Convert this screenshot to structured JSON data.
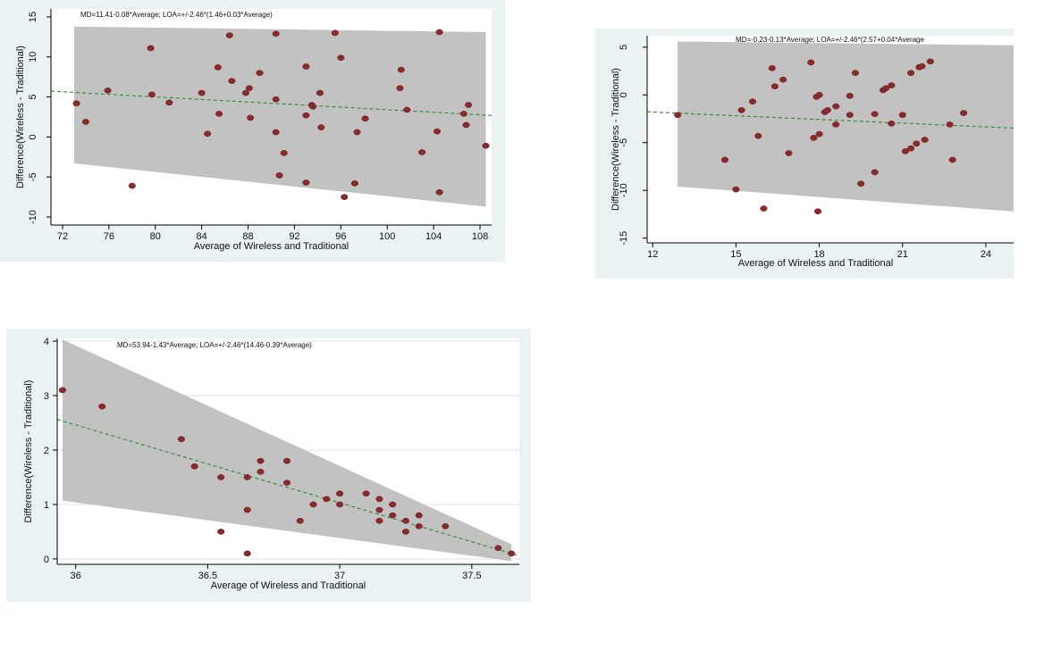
{
  "chart_data": [
    {
      "type": "scatter",
      "annotation": "MD=11.41-0.08*Average; LOA=+/-2.46*(1.46+0.03*Average)",
      "xlabel": "Average of Wireless and Traditional",
      "ylabel": "Difference(Wireless - Traditional)",
      "xlim": [
        71,
        109
      ],
      "ylim": [
        -11,
        16
      ],
      "xticks": [
        "72",
        "76",
        "80",
        "84",
        "88",
        "92",
        "96",
        "100",
        "104",
        "108"
      ],
      "yticks": [
        "-10",
        "-5",
        "0",
        "5",
        "10",
        "15"
      ],
      "yticks_rotated": true,
      "grid": false,
      "md_line": {
        "intercept": 11.41,
        "slope": -0.08
      },
      "loa_band": {
        "x": [
          73,
          108.5
        ],
        "upper": [
          13.8,
          13.1
        ],
        "lower": [
          -3.3,
          -8.7
        ]
      },
      "points": [
        [
          73.2,
          4.2
        ],
        [
          74,
          1.9
        ],
        [
          75.9,
          5.8
        ],
        [
          78,
          -6.1
        ],
        [
          79.6,
          11.1
        ],
        [
          79.7,
          5.3
        ],
        [
          81.2,
          4.3
        ],
        [
          84,
          5.5
        ],
        [
          84.5,
          0.4
        ],
        [
          85.4,
          8.7
        ],
        [
          85.5,
          2.9
        ],
        [
          86.4,
          12.7
        ],
        [
          86.6,
          7
        ],
        [
          87.8,
          5.5
        ],
        [
          88.1,
          6.1
        ],
        [
          88.2,
          2.4
        ],
        [
          89,
          8
        ],
        [
          90.4,
          12.9
        ],
        [
          90.4,
          4.7
        ],
        [
          90.4,
          0.6
        ],
        [
          90.7,
          -4.8
        ],
        [
          91.1,
          -2
        ],
        [
          93,
          8.8
        ],
        [
          93,
          2.7
        ],
        [
          93,
          -5.7
        ],
        [
          93.5,
          4
        ],
        [
          93.6,
          3.8
        ],
        [
          94.2,
          5.5
        ],
        [
          94.3,
          1.2
        ],
        [
          95.5,
          13
        ],
        [
          96,
          9.9
        ],
        [
          96.3,
          -7.5
        ],
        [
          97.2,
          -5.8
        ],
        [
          97.4,
          0.6
        ],
        [
          98.1,
          2.3
        ],
        [
          101.1,
          6.1
        ],
        [
          101.2,
          8.4
        ],
        [
          101.7,
          3.4
        ],
        [
          103,
          -1.9
        ],
        [
          104.3,
          0.7
        ],
        [
          104.5,
          13.1
        ],
        [
          104.5,
          -6.9
        ],
        [
          106.6,
          2.9
        ],
        [
          106.8,
          1.5
        ],
        [
          107,
          4
        ],
        [
          108.5,
          -1.1
        ]
      ]
    },
    {
      "type": "scatter",
      "annotation": "MD=-0.23-0.13*Average; LOA=+/-2.46*(2.57+0.04*Average",
      "xlabel": "Average of Wireless and Traditional",
      "ylabel": "Difference(Wireless - Traditional)",
      "xlim": [
        11.8,
        25
      ],
      "ylim": [
        -15.5,
        6.2
      ],
      "xticks": [
        "12",
        "15",
        "18",
        "21",
        "24"
      ],
      "yticks": [
        "-15",
        "-10",
        "-5",
        "0",
        "5"
      ],
      "yticks_rotated": true,
      "grid": false,
      "md_line": {
        "intercept": -0.23,
        "slope": -0.13
      },
      "loa_band": {
        "x": [
          12.9,
          25
        ],
        "upper": [
          5.6,
          5.2
        ],
        "lower": [
          -9.6,
          -12.2
        ]
      },
      "points": [
        [
          12.9,
          -2.1
        ],
        [
          14.6,
          -6.8
        ],
        [
          15,
          -9.9
        ],
        [
          15.2,
          -1.6
        ],
        [
          15.6,
          -0.7
        ],
        [
          15.8,
          -4.3
        ],
        [
          16,
          -11.9
        ],
        [
          16.3,
          2.8
        ],
        [
          16.4,
          0.9
        ],
        [
          16.7,
          1.6
        ],
        [
          16.9,
          -6.1
        ],
        [
          17.7,
          3.4
        ],
        [
          17.8,
          -4.5
        ],
        [
          17.9,
          -0.2
        ],
        [
          17.95,
          -12.2
        ],
        [
          18,
          -4.1
        ],
        [
          18,
          0
        ],
        [
          18.2,
          -1.8
        ],
        [
          18.3,
          -1.6
        ],
        [
          18.6,
          -1.2
        ],
        [
          18.6,
          -3.1
        ],
        [
          19.1,
          -2.1
        ],
        [
          19.1,
          -0.1
        ],
        [
          19.3,
          2.3
        ],
        [
          19.5,
          -9.3
        ],
        [
          20,
          -2
        ],
        [
          20,
          -8.1
        ],
        [
          20.3,
          0.5
        ],
        [
          20.4,
          0.7
        ],
        [
          20.6,
          1
        ],
        [
          20.6,
          -3
        ],
        [
          21,
          -2.1
        ],
        [
          21.1,
          -5.9
        ],
        [
          21.3,
          2.3
        ],
        [
          21.3,
          -5.6
        ],
        [
          21.5,
          -5.1
        ],
        [
          21.6,
          2.9
        ],
        [
          21.7,
          3
        ],
        [
          21.8,
          -4.7
        ],
        [
          22,
          3.5
        ],
        [
          22.7,
          -3.1
        ],
        [
          22.8,
          -6.8
        ],
        [
          23.2,
          -1.9
        ]
      ]
    },
    {
      "type": "scatter",
      "annotation": "MD=53.94-1.43*Average; LOA=+/-2.46*(14.46-0.39*Average)",
      "xlabel": "Average of Wireless and Traditional",
      "ylabel": "Difference(Wireless - Traditional)",
      "xlim": [
        35.93,
        37.68
      ],
      "ylim": [
        -0.1,
        4.05
      ],
      "xticks": [
        "36",
        "36.5",
        "37",
        "37.5"
      ],
      "yticks": [
        "0",
        "1",
        "2",
        "3",
        "4"
      ],
      "yticks_rotated": false,
      "grid": true,
      "md_line": {
        "intercept": 53.94,
        "slope": -1.43
      },
      "loa_band": {
        "x": [
          35.95,
          37.65
        ],
        "upper": [
          4.03,
          0.27
        ],
        "lower": [
          1.07,
          -0.04
        ]
      },
      "points": [
        [
          35.95,
          3.1
        ],
        [
          36.1,
          2.8
        ],
        [
          36.4,
          2.2
        ],
        [
          36.45,
          1.7
        ],
        [
          36.55,
          1.5
        ],
        [
          36.55,
          0.5
        ],
        [
          36.65,
          1.5
        ],
        [
          36.65,
          0.9
        ],
        [
          36.65,
          0.1
        ],
        [
          36.7,
          1.8
        ],
        [
          36.7,
          1.6
        ],
        [
          36.8,
          1.8
        ],
        [
          36.8,
          1.4
        ],
        [
          36.85,
          0.7
        ],
        [
          36.9,
          1
        ],
        [
          36.95,
          1.1
        ],
        [
          37,
          1.2
        ],
        [
          37,
          1
        ],
        [
          37.1,
          1.2
        ],
        [
          37.15,
          1.1
        ],
        [
          37.15,
          0.9
        ],
        [
          37.15,
          0.7
        ],
        [
          37.2,
          1
        ],
        [
          37.2,
          0.8
        ],
        [
          37.25,
          0.7
        ],
        [
          37.25,
          0.5
        ],
        [
          37.3,
          0.8
        ],
        [
          37.3,
          0.6
        ],
        [
          37.4,
          0.6
        ],
        [
          37.6,
          0.2
        ],
        [
          37.65,
          0.1
        ]
      ]
    }
  ]
}
